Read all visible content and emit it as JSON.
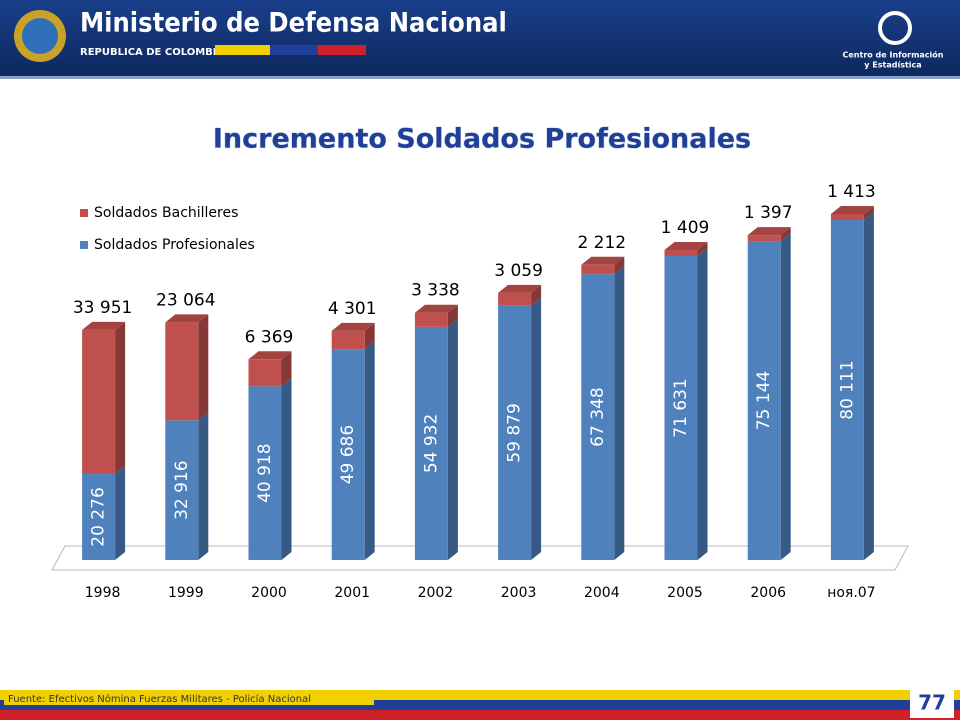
{
  "header": {
    "ministry": "Ministerio de Defensa Nacional",
    "country": "REPUBLICA DE COLOMBIA",
    "center": [
      "Centro de Información",
      "y Estadística"
    ]
  },
  "chart_data": {
    "type": "bar",
    "stacked": true,
    "title": "Incremento Soldados Profesionales",
    "categories": [
      "1998",
      "1999",
      "2000",
      "2001",
      "2002",
      "2003",
      "2004",
      "2005",
      "2006",
      "ноя.07"
    ],
    "series": [
      {
        "name": "Soldados Profesionales",
        "color": "#4f81bd",
        "values": [
          20276,
          32916,
          40918,
          49686,
          54932,
          59879,
          67348,
          71631,
          75144,
          80111
        ],
        "value_labels": [
          "20 276",
          "32 916",
          "40 918",
          "49 686",
          "54 932",
          "59 879",
          "67 348",
          "71 631",
          "75 144",
          "80 111"
        ]
      },
      {
        "name": "Soldados Bachilleres",
        "color": "#c0504d",
        "values": [
          33951,
          23064,
          6369,
          4301,
          3338,
          3059,
          2212,
          1409,
          1397,
          1413
        ],
        "value_labels": [
          "33 951",
          "23 064",
          "6 369",
          "4 301",
          "3 338",
          "3 059",
          "2 212",
          "1 409",
          "1 397",
          "1 413"
        ]
      }
    ],
    "legend": "top-left"
  },
  "footer": {
    "source": "Fuente: Efectivos Nómina Fuerzas Militares - Policía Nacional",
    "page": "77"
  }
}
